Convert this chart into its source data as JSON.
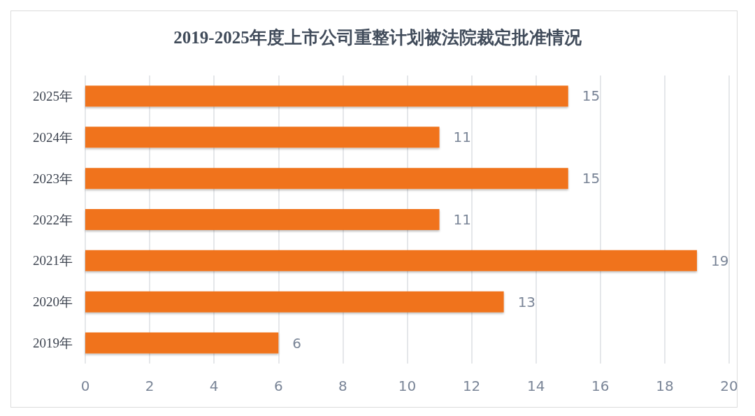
{
  "chart_data": {
    "type": "bar",
    "orientation": "horizontal",
    "title": "2019-2025年度上市公司重整计划被法院裁定批准情况",
    "categories": [
      "2025年",
      "2024年",
      "2023年",
      "2022年",
      "2021年",
      "2020年",
      "2019年"
    ],
    "values": [
      15,
      11,
      15,
      11,
      19,
      13,
      6
    ],
    "color": "#f0731c",
    "xlim": [
      0,
      20
    ],
    "xticks": [
      0,
      2,
      4,
      6,
      8,
      10,
      12,
      14,
      16,
      18,
      20
    ],
    "grid": "x",
    "data_labels": true
  }
}
